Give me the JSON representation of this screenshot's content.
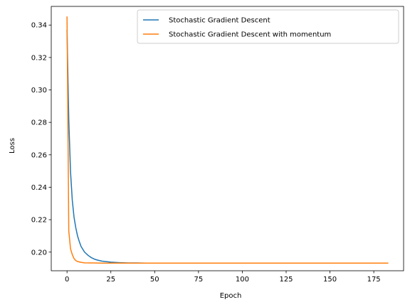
{
  "chart_data": {
    "type": "line",
    "title": "",
    "xlabel": "Epoch",
    "ylabel": "Loss",
    "xlim": [
      -9,
      192
    ],
    "ylim": [
      0.1885,
      0.3515
    ],
    "xticks": [
      0,
      25,
      50,
      75,
      100,
      125,
      150,
      175
    ],
    "yticks": [
      0.2,
      0.22,
      0.24,
      0.26,
      0.28,
      0.3,
      0.32,
      0.34
    ],
    "grid": false,
    "legend_position": "top-right",
    "series": [
      {
        "name": "Stochastic Gradient Descent",
        "color": "#1f77b4",
        "x": [
          0,
          1,
          2,
          3,
          4,
          5,
          6,
          7,
          8,
          10,
          12,
          14,
          16,
          18,
          20,
          25,
          30,
          35,
          40,
          45,
          50
        ],
        "y": [
          0.3367,
          0.2815,
          0.2495,
          0.232,
          0.2215,
          0.215,
          0.21,
          0.2065,
          0.2035,
          0.2,
          0.198,
          0.1965,
          0.1955,
          0.1949,
          0.1944,
          0.1938,
          0.1935,
          0.1933,
          0.1933,
          0.1932,
          0.1932
        ]
      },
      {
        "name": "Stochastic Gradient Descent with momentum",
        "color": "#ff7f0e",
        "x": [
          0,
          1,
          2,
          3,
          4,
          5,
          6,
          8,
          10,
          15,
          20,
          30,
          50,
          75,
          100,
          125,
          150,
          175,
          183
        ],
        "y": [
          0.345,
          0.213,
          0.202,
          0.1985,
          0.196,
          0.1948,
          0.1942,
          0.1937,
          0.1934,
          0.1933,
          0.1932,
          0.1932,
          0.1932,
          0.1932,
          0.1932,
          0.1932,
          0.1932,
          0.1932,
          0.1932
        ]
      }
    ]
  }
}
